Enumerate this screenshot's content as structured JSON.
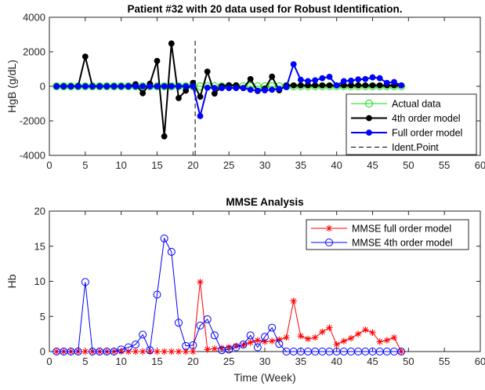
{
  "chart_data": [
    {
      "type": "line",
      "title": "Patient #32 with 20 data used for Robust Identification.",
      "xlabel": "",
      "ylabel": "HgB (g/dL)",
      "xlim": [
        0,
        60
      ],
      "ylim": [
        -4000,
        4000
      ],
      "xticks": [
        "0",
        "5",
        "10",
        "15",
        "20",
        "25",
        "30",
        "35",
        "40",
        "45",
        "50",
        "55",
        "60"
      ],
      "yticks": [
        "-4000",
        "-2000",
        "0",
        "2000",
        "4000"
      ],
      "grid": false,
      "legend_position": "bottom-right",
      "annotation": {
        "x": 20.3,
        "label": "Ident.Point"
      },
      "x": [
        1,
        2,
        3,
        4,
        5,
        6,
        7,
        8,
        9,
        10,
        11,
        12,
        13,
        14,
        15,
        16,
        17,
        18,
        19,
        20,
        21,
        22,
        23,
        24,
        25,
        26,
        27,
        28,
        29,
        30,
        31,
        32,
        33,
        34,
        35,
        36,
        37,
        38,
        39,
        40,
        41,
        42,
        43,
        44,
        45,
        46,
        47,
        48,
        49
      ],
      "series": [
        {
          "name": "Actual data",
          "color": "#00e000",
          "marker": "circle",
          "values": [
            0,
            0,
            0,
            0,
            0,
            0,
            0,
            0,
            0,
            0,
            0,
            0,
            0,
            0,
            0,
            0,
            0,
            0,
            0,
            0,
            0,
            0,
            0,
            0,
            0,
            0,
            0,
            0,
            0,
            0,
            0,
            0,
            0,
            0,
            0,
            0,
            0,
            0,
            0,
            0,
            0,
            0,
            0,
            0,
            0,
            0,
            0,
            0,
            0
          ]
        },
        {
          "name": "4th order model",
          "color": "#000000",
          "marker": "dot",
          "values": [
            0,
            0,
            0,
            0,
            1720,
            0,
            0,
            0,
            0,
            0,
            0,
            120,
            -400,
            150,
            1470,
            -2900,
            2480,
            -680,
            -250,
            200,
            -600,
            850,
            -420,
            0,
            60,
            60,
            -100,
            420,
            -270,
            -130,
            560,
            -230,
            50,
            50,
            50,
            50,
            50,
            50,
            50,
            50,
            50,
            50,
            50,
            50,
            50,
            50,
            50,
            50,
            50
          ]
        },
        {
          "name": "Full order model",
          "color": "#0000ff",
          "marker": "dot",
          "values": [
            0,
            0,
            0,
            0,
            0,
            0,
            0,
            0,
            0,
            0,
            0,
            0,
            0,
            0,
            0,
            0,
            0,
            0,
            0,
            0,
            -1720,
            -80,
            -100,
            -100,
            -100,
            -100,
            -100,
            -200,
            -250,
            -230,
            -200,
            -150,
            -50,
            1280,
            380,
            300,
            350,
            470,
            550,
            50,
            300,
            330,
            400,
            420,
            520,
            470,
            200,
            250,
            50
          ]
        }
      ]
    },
    {
      "type": "line",
      "title": "MMSE Analysis",
      "xlabel": "Time (Week)",
      "ylabel": "Hb",
      "xlim": [
        0,
        60
      ],
      "ylim": [
        0,
        20
      ],
      "xticks": [
        "0",
        "5",
        "10",
        "15",
        "20",
        "25",
        "30",
        "35",
        "40",
        "45",
        "50",
        "55",
        "60"
      ],
      "yticks": [
        "0",
        "5",
        "10",
        "15",
        "20"
      ],
      "grid": false,
      "legend_position": "top-right",
      "x": [
        1,
        2,
        3,
        4,
        5,
        6,
        7,
        8,
        9,
        10,
        11,
        12,
        13,
        14,
        15,
        16,
        17,
        18,
        19,
        20,
        21,
        22,
        23,
        24,
        25,
        26,
        27,
        28,
        29,
        30,
        31,
        32,
        33,
        34,
        35,
        36,
        37,
        38,
        39,
        40,
        41,
        42,
        43,
        44,
        45,
        46,
        47,
        48,
        49
      ],
      "series": [
        {
          "name": "MMSE full order model",
          "color": "#ff0000",
          "marker": "star",
          "values": [
            0,
            0,
            0,
            0,
            0,
            0,
            0,
            0,
            0,
            0,
            0,
            0,
            0,
            0,
            0,
            0,
            0,
            0,
            0,
            0,
            9.9,
            0.3,
            0.4,
            0.5,
            0.6,
            0.8,
            0.9,
            1.3,
            1.6,
            1.4,
            1.5,
            1.7,
            2.0,
            7.2,
            2.2,
            1.8,
            2.0,
            2.8,
            3.4,
            1.0,
            1.5,
            1.9,
            2.5,
            3.1,
            2.7,
            1.4,
            1.6,
            2.0,
            0
          ]
        },
        {
          "name": "MMSE 4th order model",
          "color": "#0000ff",
          "marker": "circle",
          "values": [
            0,
            0,
            0,
            0,
            9.9,
            0,
            0,
            0,
            0,
            0.3,
            0.6,
            1.0,
            2.4,
            0.2,
            8.1,
            16.1,
            14.2,
            4.1,
            0.8,
            0.9,
            3.7,
            4.6,
            2.3,
            0.2,
            0.3,
            0.6,
            1.0,
            2.3,
            0.6,
            2.1,
            3.4,
            1.1,
            0,
            0,
            0,
            0,
            0,
            0,
            0,
            0,
            0,
            0,
            0,
            0,
            0,
            0,
            0,
            0,
            0
          ]
        }
      ]
    }
  ]
}
